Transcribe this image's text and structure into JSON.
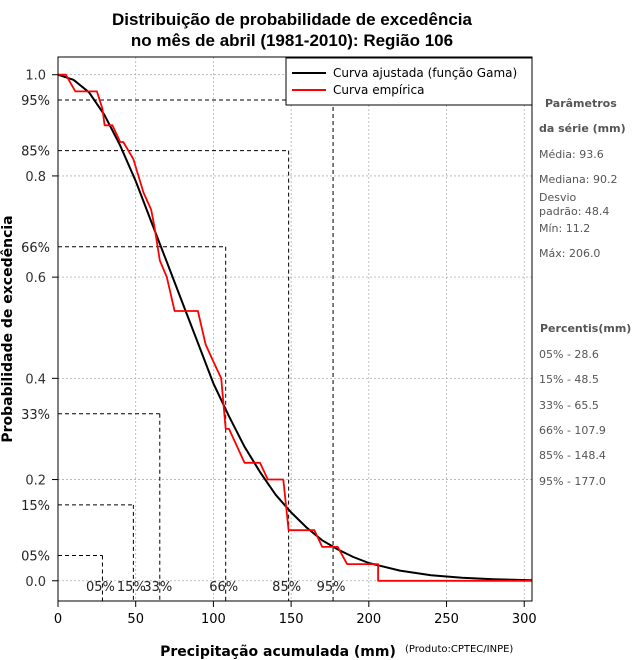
{
  "chart_data": {
    "type": "line",
    "title_line1": "Distribuição de probabilidade de excedência",
    "title_line2": "no mês de abril (1981-2010): Região 106",
    "xlabel": "Precipitação acumulada (mm)",
    "ylabel": "Probabilidade de excedência",
    "credit": "(Produto:CPTEC/INPE)",
    "xlim": [
      0,
      305
    ],
    "ylim": [
      -0.04,
      1.035
    ],
    "x_ticks": [
      0,
      50,
      100,
      150,
      200,
      250,
      300
    ],
    "x_tick_labels": [
      "0",
      "50",
      "100",
      "150",
      "200",
      "250",
      "300"
    ],
    "y_ticks": [
      0.0,
      0.2,
      0.4,
      0.6,
      0.8,
      1.0
    ],
    "y_tick_labels": [
      "0.0",
      "0.2",
      "0.4",
      "0.6",
      "0.8",
      "1.0"
    ],
    "grid": true,
    "legend_position": "top-right",
    "series": [
      {
        "name": "Curva ajustada (função Gama)",
        "color": "#000000",
        "x": [
          0,
          10,
          20,
          30,
          40,
          50,
          60,
          70,
          80,
          90,
          100,
          110,
          120,
          130,
          140,
          150,
          160,
          170,
          180,
          190,
          200,
          220,
          240,
          260,
          280,
          305
        ],
        "y": [
          1.0,
          0.99,
          0.965,
          0.92,
          0.86,
          0.79,
          0.71,
          0.63,
          0.55,
          0.47,
          0.39,
          0.325,
          0.265,
          0.215,
          0.17,
          0.135,
          0.105,
          0.08,
          0.062,
          0.047,
          0.035,
          0.02,
          0.011,
          0.006,
          0.003,
          0.001
        ]
      },
      {
        "name": "Curva empírica",
        "color": "#ff0000",
        "x": [
          0,
          5,
          11.2,
          11.2,
          25,
          28.6,
          30,
          35,
          40,
          42,
          48.5,
          55,
          60,
          62,
          65.5,
          70,
          75,
          78,
          85,
          90,
          95,
          95,
          100,
          100,
          105,
          107.9,
          110,
          115,
          120,
          125,
          130,
          135,
          140,
          145,
          148.4,
          160,
          165,
          170,
          175,
          177,
          180,
          186,
          190,
          195,
          200,
          206,
          206,
          305
        ],
        "y": [
          1.0,
          1.0,
          0.967,
          0.967,
          0.967,
          0.933,
          0.9,
          0.9,
          0.867,
          0.867,
          0.833,
          0.767,
          0.733,
          0.7,
          0.633,
          0.6,
          0.533,
          0.533,
          0.533,
          0.533,
          0.467,
          0.467,
          0.433,
          0.433,
          0.4,
          0.3,
          0.3,
          0.267,
          0.233,
          0.233,
          0.233,
          0.2,
          0.2,
          0.2,
          0.1,
          0.1,
          0.1,
          0.067,
          0.067,
          0.067,
          0.067,
          0.033,
          0.033,
          0.033,
          0.033,
          0.033,
          0.0,
          0.0
        ]
      }
    ],
    "percentiles": [
      {
        "label": "05%",
        "prob": 0.05,
        "value": 28.6
      },
      {
        "label": "15%",
        "prob": 0.15,
        "value": 48.5
      },
      {
        "label": "33%",
        "prob": 0.33,
        "value": 65.5
      },
      {
        "label": "66%",
        "prob": 0.66,
        "value": 107.9
      },
      {
        "label": "85%",
        "prob": 0.85,
        "value": 148.4
      },
      {
        "label": "95%",
        "prob": 0.95,
        "value": 177.0
      }
    ]
  },
  "sidebar": {
    "params_heading_line1": "Parâmetros",
    "params_heading_line2": "da série (mm)",
    "media": "Média: 93.6",
    "mediana": "Mediana: 90.2",
    "desvio_line1": "Desvio",
    "desvio_line2": "padrão: 48.4",
    "min": "Mín: 11.2",
    "max": "Máx: 206.0",
    "percentis_heading": "Percentis(mm)",
    "p05": "05% - 28.6",
    "p15": "15% - 48.5",
    "p33": "33% - 65.5",
    "p66": "66% - 107.9",
    "p85": "85% - 148.4",
    "p95": "95% - 177.0"
  }
}
